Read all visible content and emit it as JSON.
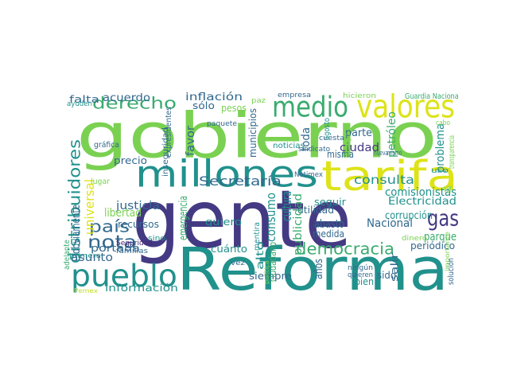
{
  "colors": {
    "yellow": "#dde318",
    "lime": "#7ad151",
    "green": "#3aab6f",
    "teal": "#21918c",
    "blue": "#31688e",
    "indigo": "#443a83",
    "purple": "#482878",
    "pale": "#c2df23"
  },
  "words": [
    {
      "t": "gente",
      "c": "indigo"
    },
    {
      "t": "gobierno",
      "c": "lime"
    },
    {
      "t": "Reforma",
      "c": "teal"
    },
    {
      "t": "tarifa",
      "c": "yellow"
    },
    {
      "t": "millones",
      "c": "teal"
    },
    {
      "t": "valores",
      "c": "yellow"
    },
    {
      "t": "medio",
      "c": "green"
    },
    {
      "t": "pueblo",
      "c": "teal"
    },
    {
      "t": "gas",
      "c": "indigo"
    },
    {
      "t": "democracia",
      "c": "green"
    },
    {
      "t": "derecho",
      "c": "green"
    },
    {
      "t": "nota",
      "c": "blue"
    },
    {
      "t": "país",
      "c": "blue"
    },
    {
      "t": "consulta",
      "c": "teal"
    },
    {
      "t": "Secretaría",
      "c": "blue"
    },
    {
      "t": "distribuidores",
      "c": "teal"
    },
    {
      "t": "asunto",
      "c": "blue"
    },
    {
      "t": "universal",
      "c": "yellow"
    },
    {
      "t": "justicia",
      "c": "blue"
    },
    {
      "t": "corrupción",
      "c": "teal"
    },
    {
      "t": "comisionistas",
      "c": "teal"
    },
    {
      "t": "Electricidad",
      "c": "teal"
    },
    {
      "t": "Nacional",
      "c": "blue"
    },
    {
      "t": "parque",
      "c": "green"
    },
    {
      "t": "periódico",
      "c": "blue"
    },
    {
      "t": "portada",
      "c": "blue"
    },
    {
      "t": "información",
      "c": "teal"
    },
    {
      "t": "inflación",
      "c": "blue"
    },
    {
      "t": "acuerdo",
      "c": "blue"
    },
    {
      "t": "falta",
      "c": "blue"
    },
    {
      "t": "sólo",
      "c": "blue"
    },
    {
      "t": "pesos",
      "c": "lime"
    },
    {
      "t": "precio",
      "c": "blue"
    },
    {
      "t": "recursos",
      "c": "blue"
    },
    {
      "t": "libertad",
      "c": "lime"
    },
    {
      "t": "ciudad",
      "c": "indigo"
    },
    {
      "t": "parte",
      "c": "blue"
    },
    {
      "t": "toda",
      "c": "blue"
    },
    {
      "t": "cultura",
      "c": "teal"
    },
    {
      "t": "consumo",
      "c": "teal"
    },
    {
      "t": "utilidad",
      "c": "blue"
    },
    {
      "t": "medida",
      "c": "blue"
    },
    {
      "t": "abasto",
      "c": "blue"
    },
    {
      "t": "seguir",
      "c": "teal"
    },
    {
      "t": "quiero",
      "c": "teal"
    },
    {
      "t": "cuánto",
      "c": "teal"
    },
    {
      "t": "siempre",
      "c": "blue"
    },
    {
      "t": "bien",
      "c": "teal"
    },
    {
      "t": "años",
      "c": "blue"
    },
    {
      "t": "problema",
      "c": "teal"
    },
    {
      "t": "petróleo",
      "c": "green"
    },
    {
      "t": "favor",
      "c": "blue"
    },
    {
      "t": "municipios",
      "c": "blue"
    },
    {
      "t": "emergencia",
      "c": "green"
    },
    {
      "t": "alto",
      "c": "teal"
    },
    {
      "t": "ciudadano",
      "c": "green"
    },
    {
      "t": "publicidad",
      "c": "green"
    },
    {
      "t": "obviamente",
      "c": "blue"
    },
    {
      "t": "misma",
      "c": "blue"
    },
    {
      "t": "sido",
      "c": "blue"
    },
    {
      "t": "salir",
      "c": "blue"
    },
    {
      "t": "Guardia Nacional",
      "c": "green"
    },
    {
      "t": "empresa",
      "c": "blue"
    },
    {
      "t": "hicieron",
      "c": "lime"
    },
    {
      "t": "paz",
      "c": "lime"
    },
    {
      "t": "ayuden",
      "c": "teal"
    },
    {
      "t": "expresidentes",
      "c": "blue"
    },
    {
      "t": "paquete",
      "c": "blue"
    },
    {
      "t": "noticias",
      "c": "teal"
    },
    {
      "t": "gráfica",
      "c": "blue"
    },
    {
      "t": "inseguridad",
      "c": "blue"
    },
    {
      "t": "lugar",
      "c": "lime"
    },
    {
      "t": "Seguridad",
      "c": "purple"
    },
    {
      "t": "Notimex",
      "c": "blue"
    },
    {
      "t": "sino",
      "c": "teal"
    },
    {
      "t": "adelante",
      "c": "green"
    },
    {
      "t": "primera",
      "c": "teal"
    },
    {
      "t": "familias",
      "c": "blue"
    },
    {
      "t": "Pemex",
      "c": "pale"
    },
    {
      "t": "vez",
      "c": "blue"
    },
    {
      "t": "mentira",
      "c": "teal"
    },
    {
      "t": "ningún",
      "c": "blue"
    },
    {
      "t": "quieren",
      "c": "blue"
    },
    {
      "t": "dinero",
      "c": "lime"
    },
    {
      "t": "uso",
      "c": "teal"
    },
    {
      "t": "cuesta",
      "c": "blue"
    },
    {
      "t": "sindicato",
      "c": "blue"
    },
    {
      "t": "agosto",
      "c": "teal"
    },
    {
      "t": "Energía",
      "c": "lime"
    },
    {
      "t": "nueva",
      "c": "blue"
    },
    {
      "t": "mismo",
      "c": "blue"
    },
    {
      "t": "transparencia",
      "c": "lime"
    },
    {
      "t": "cabo",
      "c": "lime"
    },
    {
      "t": "política",
      "c": "lime"
    },
    {
      "t": "importante",
      "c": "lime"
    },
    {
      "t": "ver",
      "c": "lime"
    },
    {
      "t": "solución",
      "c": "blue"
    }
  ]
}
